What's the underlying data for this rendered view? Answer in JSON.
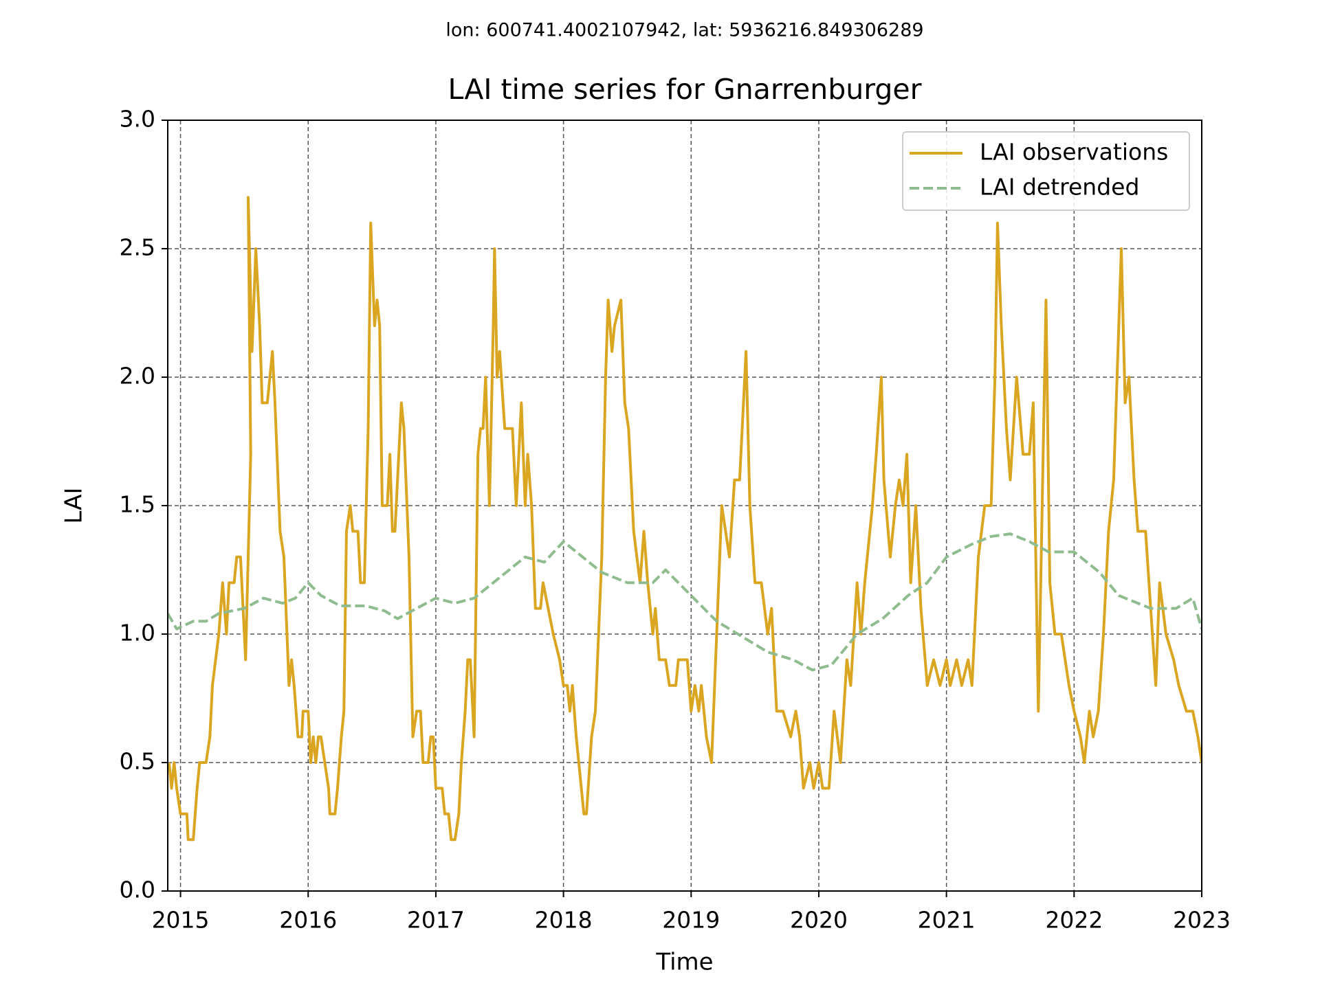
{
  "chart_data": {
    "type": "line",
    "subtitle": "lon: 600741.4002107942, lat: 5936216.849306289",
    "title": "LAI time series for Gnarrenburger",
    "x_label": "Time",
    "y_label": "LAI",
    "xlim": [
      2014.9,
      2023
    ],
    "xticks": [
      2015,
      2016,
      2017,
      2018,
      2019,
      2020,
      2021,
      2022,
      2023
    ],
    "ylim": [
      0,
      3
    ],
    "yticks": [
      {
        "value": 0,
        "label": "0.0"
      },
      {
        "value": 0.5,
        "label": "0.5"
      },
      {
        "value": 1,
        "label": "1.0"
      },
      {
        "value": 1.5,
        "label": "1.5"
      },
      {
        "value": 2,
        "label": "2.0"
      },
      {
        "value": 2.5,
        "label": "2.5"
      },
      {
        "value": 3,
        "label": "3.0"
      }
    ],
    "grid": true,
    "legend": "upper right",
    "series": [
      {
        "name": "LAI observations",
        "color": "#daa520",
        "style": "solid",
        "x": [
          2014.91,
          2014.93,
          2014.95,
          2014.97,
          2015.0,
          2015.05,
          2015.06,
          2015.1,
          2015.13,
          2015.15,
          2015.2,
          2015.23,
          2015.25,
          2015.3,
          2015.33,
          2015.36,
          2015.38,
          2015.42,
          2015.44,
          2015.47,
          2015.51,
          2015.55,
          2015.53,
          2015.56,
          2015.59,
          2015.62,
          2015.64,
          2015.68,
          2015.7,
          2015.72,
          2015.74,
          2015.78,
          2015.81,
          2015.85,
          2015.87,
          2015.89,
          2015.92,
          2015.95,
          2015.96,
          2016.0,
          2016.02,
          2016.04,
          2016.06,
          2016.08,
          2016.1,
          2016.13,
          2016.16,
          2016.17,
          2016.21,
          2016.23,
          2016.26,
          2016.28,
          2016.3,
          2016.33,
          2016.35,
          2016.39,
          2016.41,
          2016.44,
          2016.47,
          2016.49,
          2016.52,
          2016.54,
          2016.56,
          2016.58,
          2016.62,
          2016.64,
          2016.66,
          2016.68,
          2016.7,
          2016.73,
          2016.75,
          2016.79,
          2016.82,
          2016.85,
          2016.88,
          2016.9,
          2016.94,
          2016.96,
          2016.98,
          2017.0,
          2017.05,
          2017.07,
          2017.1,
          2017.12,
          2017.15,
          2017.18,
          2017.2,
          2017.23,
          2017.25,
          2017.27,
          2017.3,
          2017.33,
          2017.35,
          2017.37,
          2017.39,
          2017.42,
          2017.45,
          2017.46,
          2017.48,
          2017.5,
          2017.54,
          2017.6,
          2017.63,
          2017.67,
          2017.7,
          2017.72,
          2017.75,
          2017.78,
          2017.82,
          2017.84,
          2017.88,
          2017.92,
          2017.97,
          2018.0,
          2018.03,
          2018.05,
          2018.07,
          2018.1,
          2018.16,
          2018.18,
          2018.22,
          2018.25,
          2018.3,
          2018.33,
          2018.35,
          2018.38,
          2018.4,
          2018.45,
          2018.48,
          2018.51,
          2018.55,
          2018.6,
          2018.63,
          2018.66,
          2018.7,
          2018.72,
          2018.75,
          2018.8,
          2018.83,
          2018.88,
          2018.9,
          2018.97,
          2019.0,
          2019.03,
          2019.06,
          2019.08,
          2019.12,
          2019.16,
          2019.2,
          2019.24,
          2019.27,
          2019.3,
          2019.34,
          2019.38,
          2019.4,
          2019.43,
          2019.46,
          2019.5,
          2019.55,
          2019.6,
          2019.63,
          2019.67,
          2019.72,
          2019.78,
          2019.82,
          2019.85,
          2019.88,
          2019.93,
          2019.96,
          2020.0,
          2020.03,
          2020.08,
          2020.12,
          2020.17,
          2020.22,
          2020.25,
          2020.3,
          2020.33,
          2020.36,
          2020.42,
          2020.45,
          2020.49,
          2020.51,
          2020.56,
          2020.6,
          2020.63,
          2020.66,
          2020.69,
          2020.72,
          2020.76,
          2020.8,
          2020.85,
          2020.9,
          2020.95,
          2021.0,
          2021.03,
          2021.08,
          2021.12,
          2021.17,
          2021.2,
          2021.25,
          2021.3,
          2021.35,
          2021.38,
          2021.4,
          2021.43,
          2021.47,
          2021.5,
          2021.55,
          2021.6,
          2021.65,
          2021.68,
          2021.72,
          2021.78,
          2021.81,
          2021.85,
          2021.9,
          2021.96,
          2022.0,
          2022.05,
          2022.08,
          2022.12,
          2022.15,
          2022.19,
          2022.23,
          2022.27,
          2022.31,
          2022.35,
          2022.37,
          2022.4,
          2022.43,
          2022.47,
          2022.5,
          2022.56,
          2022.6,
          2022.64,
          2022.67,
          2022.72,
          2022.78,
          2022.82,
          2022.88,
          2022.93,
          2022.97,
          2023.0
        ],
        "values": [
          0.5,
          0.4,
          0.5,
          0.4,
          0.3,
          0.3,
          0.2,
          0.2,
          0.4,
          0.5,
          0.5,
          0.6,
          0.8,
          1.0,
          1.2,
          1.0,
          1.2,
          1.2,
          1.3,
          1.3,
          0.9,
          1.7,
          2.7,
          2.1,
          2.5,
          2.2,
          1.9,
          1.9,
          2.0,
          2.1,
          1.9,
          1.4,
          1.3,
          0.8,
          0.9,
          0.8,
          0.6,
          0.6,
          0.7,
          0.7,
          0.5,
          0.6,
          0.5,
          0.6,
          0.6,
          0.5,
          0.4,
          0.3,
          0.3,
          0.4,
          0.6,
          0.7,
          1.4,
          1.5,
          1.4,
          1.4,
          1.2,
          1.2,
          1.8,
          2.6,
          2.2,
          2.3,
          2.2,
          1.5,
          1.5,
          1.7,
          1.4,
          1.4,
          1.6,
          1.9,
          1.8,
          1.3,
          0.6,
          0.7,
          0.7,
          0.5,
          0.5,
          0.6,
          0.6,
          0.4,
          0.4,
          0.3,
          0.3,
          0.2,
          0.2,
          0.3,
          0.5,
          0.7,
          0.9,
          0.9,
          0.6,
          1.7,
          1.8,
          1.8,
          2.0,
          1.5,
          2.2,
          2.5,
          2.0,
          2.1,
          1.8,
          1.8,
          1.5,
          1.9,
          1.5,
          1.7,
          1.5,
          1.1,
          1.1,
          1.2,
          1.1,
          1.0,
          0.9,
          0.8,
          0.8,
          0.7,
          0.8,
          0.6,
          0.3,
          0.3,
          0.6,
          0.7,
          1.3,
          2.0,
          2.3,
          2.1,
          2.2,
          2.3,
          1.9,
          1.8,
          1.4,
          1.2,
          1.4,
          1.2,
          1.0,
          1.1,
          0.9,
          0.9,
          0.8,
          0.8,
          0.9,
          0.9,
          0.7,
          0.8,
          0.7,
          0.8,
          0.6,
          0.5,
          1.0,
          1.5,
          1.4,
          1.3,
          1.6,
          1.6,
          1.8,
          2.1,
          1.5,
          1.2,
          1.2,
          1.0,
          1.1,
          0.7,
          0.7,
          0.6,
          0.7,
          0.6,
          0.4,
          0.5,
          0.4,
          0.5,
          0.4,
          0.4,
          0.7,
          0.5,
          0.9,
          0.8,
          1.2,
          1.0,
          1.2,
          1.5,
          1.7,
          2.0,
          1.6,
          1.3,
          1.5,
          1.6,
          1.5,
          1.7,
          1.2,
          1.5,
          1.1,
          0.8,
          0.9,
          0.8,
          0.9,
          0.8,
          0.9,
          0.8,
          0.9,
          0.8,
          1.3,
          1.5,
          1.5,
          2.0,
          2.6,
          2.2,
          1.8,
          1.6,
          2.0,
          1.7,
          1.7,
          1.9,
          0.7,
          2.3,
          1.2,
          1.0,
          1.0,
          0.8,
          0.7,
          0.6,
          0.5,
          0.7,
          0.6,
          0.7,
          1.0,
          1.4,
          1.6,
          2.2,
          2.5,
          1.9,
          2.0,
          1.6,
          1.4,
          1.4,
          1.1,
          0.8,
          1.2,
          1.0,
          0.9,
          0.8,
          0.7,
          0.7,
          0.6,
          0.5
        ]
      },
      {
        "name": "LAI detrended",
        "color": "#8fbc8f",
        "style": "dashed",
        "x": [
          2014.9,
          2014.97,
          2015.1,
          2015.2,
          2015.3,
          2015.5,
          2015.65,
          2015.8,
          2015.9,
          2016.0,
          2016.1,
          2016.25,
          2016.45,
          2016.6,
          2016.7,
          2016.85,
          2017.0,
          2017.15,
          2017.3,
          2017.5,
          2017.7,
          2017.85,
          2018.0,
          2018.15,
          2018.3,
          2018.5,
          2018.7,
          2018.8,
          2019.0,
          2019.2,
          2019.4,
          2019.6,
          2019.8,
          2019.95,
          2020.1,
          2020.3,
          2020.5,
          2020.7,
          2020.85,
          2021.0,
          2021.2,
          2021.35,
          2021.5,
          2021.65,
          2021.8,
          2022.0,
          2022.2,
          2022.35,
          2022.6,
          2022.8,
          2022.93,
          2023.0
        ],
        "values": [
          1.08,
          1.02,
          1.05,
          1.05,
          1.08,
          1.1,
          1.14,
          1.12,
          1.14,
          1.2,
          1.15,
          1.11,
          1.11,
          1.09,
          1.06,
          1.1,
          1.14,
          1.12,
          1.14,
          1.22,
          1.3,
          1.28,
          1.36,
          1.3,
          1.24,
          1.2,
          1.2,
          1.25,
          1.15,
          1.05,
          0.99,
          0.93,
          0.9,
          0.86,
          0.88,
          1.0,
          1.06,
          1.15,
          1.2,
          1.3,
          1.35,
          1.38,
          1.39,
          1.36,
          1.32,
          1.32,
          1.24,
          1.15,
          1.1,
          1.1,
          1.14,
          1.02
        ]
      }
    ]
  }
}
